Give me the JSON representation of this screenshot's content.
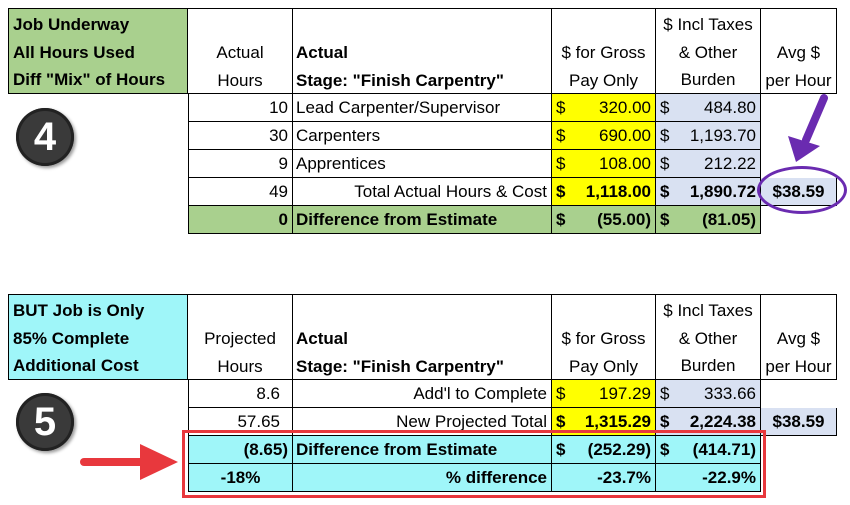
{
  "table4": {
    "label_lines": [
      "Job Underway",
      "All Hours Used",
      "Diff \"Mix\" of Hours"
    ],
    "hdr_hours": [
      "Actual",
      "Hours"
    ],
    "hdr_stage": [
      "Actual",
      "Stage: \"Finish Carpentry\""
    ],
    "hdr_gross": [
      "$ for Gross",
      "Pay Only"
    ],
    "hdr_incl": [
      "$ Incl Taxes",
      "& Other",
      "Burden"
    ],
    "hdr_avg": [
      "Avg $",
      "per Hour"
    ],
    "badge": "4",
    "rows": [
      {
        "hours": "10",
        "desc": "Lead Carpenter/Supervisor",
        "gross": "320.00",
        "incl": "484.80"
      },
      {
        "hours": "30",
        "desc": "Carpenters",
        "gross": "690.00",
        "incl": "1,193.70"
      },
      {
        "hours": "9",
        "desc": "Apprentices",
        "gross": "108.00",
        "incl": "212.22"
      }
    ],
    "total": {
      "hours": "49",
      "desc": "Total Actual Hours & Cost",
      "gross": "1,118.00",
      "incl": "1,890.72",
      "avg": "$38.59"
    },
    "diff": {
      "hours": "0",
      "desc": "Difference from Estimate",
      "gross": "(55.00)",
      "incl": "(81.05)"
    }
  },
  "table5": {
    "label_lines": [
      "BUT Job is Only",
      "85% Complete",
      "Additional Cost"
    ],
    "hdr_hours": [
      "Projected",
      "Hours"
    ],
    "hdr_stage": [
      "Actual",
      "Stage: \"Finish Carpentry\""
    ],
    "hdr_gross": [
      "$ for Gross",
      "Pay Only"
    ],
    "hdr_incl": [
      "$ Incl Taxes",
      "& Other",
      "Burden"
    ],
    "hdr_avg": [
      "Avg $",
      "per Hour"
    ],
    "badge": "5",
    "rows": [
      {
        "hours": "8.6",
        "desc": "Add'l to Complete",
        "gross": "197.29",
        "incl": "333.66"
      },
      {
        "hours": "57.65",
        "desc": "New Projected Total",
        "gross": "1,315.29",
        "incl": "2,224.38",
        "avg": "$38.59"
      }
    ],
    "diff": {
      "hours": "(8.65)",
      "desc": "Difference from Estimate",
      "gross": "(252.29)",
      "incl": "(414.71)"
    },
    "pct": {
      "hours": "-18%",
      "desc": "% difference",
      "gross": "-23.7%",
      "incl": "-22.9%"
    }
  },
  "currency_symbol": "$",
  "colors": {
    "green": "#a9d08e",
    "yellow": "#ffff00",
    "lavender": "#d9e1f2",
    "cyan": "#9ff6f9",
    "purple": "#6a2bb0",
    "red": "#e8383d"
  }
}
